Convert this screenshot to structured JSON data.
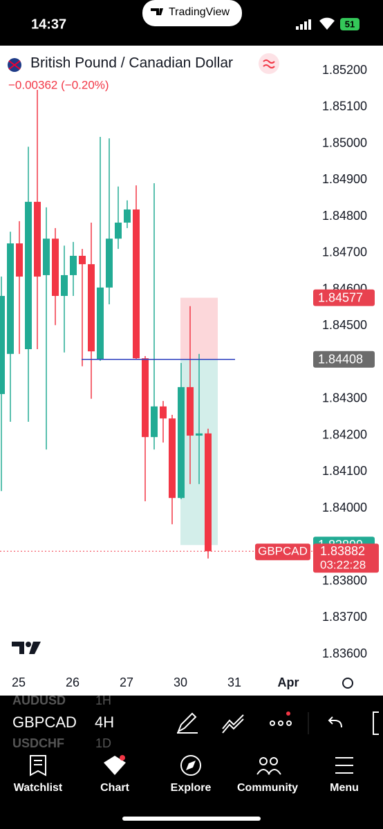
{
  "status_bar": {
    "time": "14:37",
    "app": "TradingView",
    "battery": "51"
  },
  "header": {
    "symbol_name": "British Pound / Canadian Dollar",
    "change": "−0.00362 (−0.20%)"
  },
  "chart_data": {
    "type": "candlestick",
    "open": [
      1.84313,
      1.84423,
      1.84726,
      1.84436,
      1.8484,
      1.84639,
      1.84739,
      1.84582,
      1.84639,
      1.84692,
      1.84669,
      1.84408,
      1.84605,
      1.84739,
      1.84783,
      1.84819,
      1.84411,
      1.84195,
      1.84279,
      1.84246,
      1.84028,
      1.84332,
      1.84199,
      1.84205
    ],
    "high": [
      1.84635,
      1.84758,
      1.84787,
      1.84991,
      1.85147,
      1.84825,
      1.84768,
      1.8472,
      1.8473,
      1.84711,
      1.84783,
      1.85018,
      1.85014,
      1.84882,
      1.84844,
      1.84885,
      1.84417,
      1.84891,
      1.84294,
      1.84256,
      1.84398,
      1.84554,
      1.84423,
      1.84218
    ],
    "low": [
      1.84047,
      1.84237,
      1.84423,
      1.84237,
      1.84436,
      1.84161,
      1.84502,
      1.84427,
      1.84582,
      1.84389,
      1.843,
      1.84404,
      1.84559,
      1.84711,
      1.84768,
      1.84408,
      1.84019,
      1.84161,
      1.8418,
      1.83956,
      1.84025,
      1.84066,
      1.84066,
      1.83862
    ],
    "close": [
      1.84582,
      1.84726,
      1.84635,
      1.8484,
      1.84635,
      1.84739,
      1.84582,
      1.84639,
      1.84692,
      1.84669,
      1.8443,
      1.84605,
      1.84739,
      1.84783,
      1.84819,
      1.84411,
      1.84195,
      1.84279,
      1.84246,
      1.84028,
      1.84332,
      1.84199,
      1.84205,
      1.83882
    ],
    "up_color": "#22ab94",
    "down_color": "#f23645",
    "ylim": [
      1.836,
      1.852
    ],
    "yticks": [
      {
        "value": 1.852,
        "label": "1.85200"
      },
      {
        "value": 1.851,
        "label": "1.85100"
      },
      {
        "value": 1.85,
        "label": "1.85000"
      },
      {
        "value": 1.849,
        "label": "1.84900"
      },
      {
        "value": 1.848,
        "label": "1.84800"
      },
      {
        "value": 1.847,
        "label": "1.84700"
      },
      {
        "value": 1.846,
        "label": "1.84600"
      },
      {
        "value": 1.845,
        "label": "1.84500"
      },
      {
        "value": 1.844,
        "label": "1.84400"
      },
      {
        "value": 1.843,
        "label": "1.84300"
      },
      {
        "value": 1.842,
        "label": "1.84200"
      },
      {
        "value": 1.841,
        "label": "1.84100"
      },
      {
        "value": 1.84,
        "label": "1.84000"
      },
      {
        "value": 1.839,
        "label": "1.83900"
      },
      {
        "value": 1.838,
        "label": "1.83800"
      },
      {
        "value": 1.837,
        "label": "1.83700"
      },
      {
        "value": 1.836,
        "label": "1.83600"
      }
    ],
    "xticks": [
      "25",
      "26",
      "27",
      "30",
      "31",
      "Apr"
    ],
    "position": {
      "stop": 1.84577,
      "entry": 1.84408,
      "target": 1.83899
    },
    "last_price": {
      "symbol": "GBPCAD",
      "value": 1.83882,
      "countdown": "03:22:28"
    }
  },
  "toolbar": {
    "symbol": "GBPCAD",
    "interval": "4H",
    "watchlist_above": [
      "AUDUSD",
      "1H"
    ],
    "watchlist_below": [
      "USDCHF",
      "1D"
    ]
  },
  "nav": [
    "Watchlist",
    "Chart",
    "Explore",
    "Community",
    "Menu"
  ]
}
